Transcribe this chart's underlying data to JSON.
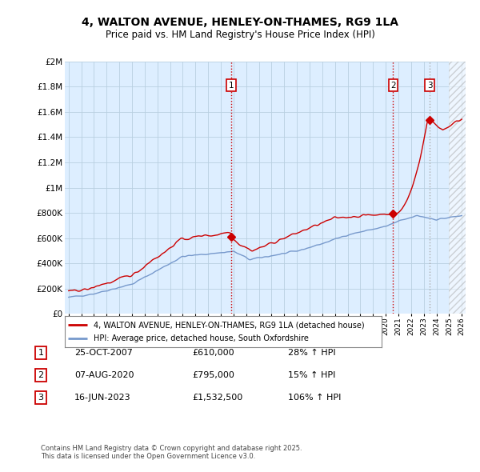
{
  "title_line1": "4, WALTON AVENUE, HENLEY-ON-THAMES, RG9 1LA",
  "title_line2": "Price paid vs. HM Land Registry's House Price Index (HPI)",
  "ylabel_ticks": [
    "£0",
    "£200K",
    "£400K",
    "£600K",
    "£800K",
    "£1M",
    "£1.2M",
    "£1.4M",
    "£1.6M",
    "£1.8M",
    "£2M"
  ],
  "ylabel_values": [
    0,
    200000,
    400000,
    600000,
    800000,
    1000000,
    1200000,
    1400000,
    1600000,
    1800000,
    2000000
  ],
  "ylim": [
    0,
    2000000
  ],
  "xlim_start": 1994.7,
  "xlim_end": 2026.3,
  "sale_dates": [
    2007.82,
    2020.59,
    2023.46
  ],
  "sale_prices": [
    610000,
    795000,
    1532500
  ],
  "sale_labels": [
    "1",
    "2",
    "3"
  ],
  "vline_colors": [
    "#cc0000",
    "#cc0000",
    "#aaaaaa"
  ],
  "vline_style": ":",
  "legend_red_label": "4, WALTON AVENUE, HENLEY-ON-THAMES, RG9 1LA (detached house)",
  "legend_blue_label": "HPI: Average price, detached house, South Oxfordshire",
  "table_rows": [
    [
      "1",
      "25-OCT-2007",
      "£610,000",
      "28% ↑ HPI"
    ],
    [
      "2",
      "07-AUG-2020",
      "£795,000",
      "15% ↑ HPI"
    ],
    [
      "3",
      "16-JUN-2023",
      "£1,532,500",
      "106% ↑ HPI"
    ]
  ],
  "footnote": "Contains HM Land Registry data © Crown copyright and database right 2025.\nThis data is licensed under the Open Government Licence v3.0.",
  "bg_color": "#ffffff",
  "plot_bg_color": "#ddeeff",
  "grid_color": "#b8cfe0",
  "red_line_color": "#cc0000",
  "blue_line_color": "#7799cc",
  "hatch_start": 2025.0
}
